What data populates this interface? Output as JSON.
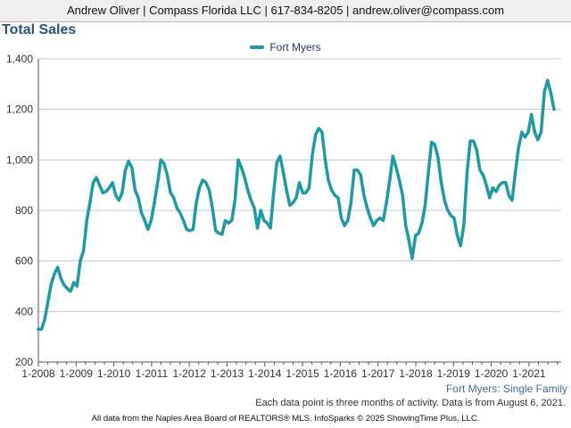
{
  "header": {
    "contact": "Andrew Oliver | Compass Florida LLC | 617-834-8205 | andrew.oliver@compass.com"
  },
  "title": "Total Sales",
  "series_label": "Fort Myers: Single Family",
  "note": "Each data point is three months of activity. Data is from August 6, 2021.",
  "footer": "All data from the Naples Area Board of REALTORS® MLS. InfoSparks © 2025 ShowingTime Plus, LLC.",
  "colors": {
    "series": "#1f9aa4",
    "grid": "#c8c8c8",
    "axis": "#555555"
  },
  "chart_data": {
    "type": "line",
    "title": "Total Sales",
    "xlabel": "",
    "ylabel": "",
    "x_tick_labels": [
      "1-2008",
      "1-2009",
      "1-2010",
      "1-2011",
      "1-2012",
      "1-2013",
      "1-2014",
      "1-2015",
      "1-2016",
      "1-2017",
      "1-2018",
      "1-2019",
      "1-2020",
      "1-2021"
    ],
    "y_ticks": [
      200,
      400,
      600,
      800,
      1000,
      1200,
      1400
    ],
    "y_tick_labels": [
      "200",
      "400",
      "600",
      "800",
      "1,000",
      "1,200",
      "1,400"
    ],
    "ylim": [
      200,
      1400
    ],
    "x_start": "1-2008",
    "x_end": "6-2021",
    "grid": true,
    "legend_position": "top-center",
    "series": [
      {
        "name": "Fort Myers",
        "values": [
          330,
          330,
          370,
          440,
          510,
          550,
          575,
          530,
          505,
          490,
          480,
          515,
          500,
          600,
          640,
          760,
          830,
          910,
          930,
          900,
          870,
          875,
          890,
          910,
          860,
          840,
          870,
          960,
          995,
          970,
          880,
          850,
          790,
          760,
          725,
          760,
          830,
          910,
          1000,
          985,
          940,
          870,
          850,
          810,
          790,
          760,
          725,
          720,
          725,
          830,
          890,
          920,
          910,
          880,
          810,
          720,
          710,
          705,
          760,
          750,
          760,
          840,
          1000,
          970,
          930,
          880,
          840,
          810,
          730,
          800,
          760,
          750,
          730,
          870,
          990,
          1015,
          950,
          880,
          820,
          830,
          850,
          910,
          870,
          870,
          890,
          1020,
          1100,
          1125,
          1110,
          1000,
          920,
          880,
          860,
          850,
          770,
          740,
          760,
          830,
          960,
          960,
          940,
          860,
          810,
          770,
          740,
          760,
          770,
          760,
          830,
          920,
          1015,
          970,
          920,
          860,
          740,
          680,
          610,
          700,
          710,
          750,
          820,
          950,
          1070,
          1060,
          1010,
          910,
          840,
          800,
          780,
          770,
          700,
          660,
          740,
          950,
          1075,
          1075,
          1040,
          960,
          940,
          900,
          850,
          890,
          875,
          900,
          910,
          910,
          860,
          840,
          950,
          1050,
          1110,
          1090,
          1110,
          1180,
          1110,
          1080,
          1110,
          1270,
          1315,
          1265,
          1200
        ]
      }
    ]
  }
}
